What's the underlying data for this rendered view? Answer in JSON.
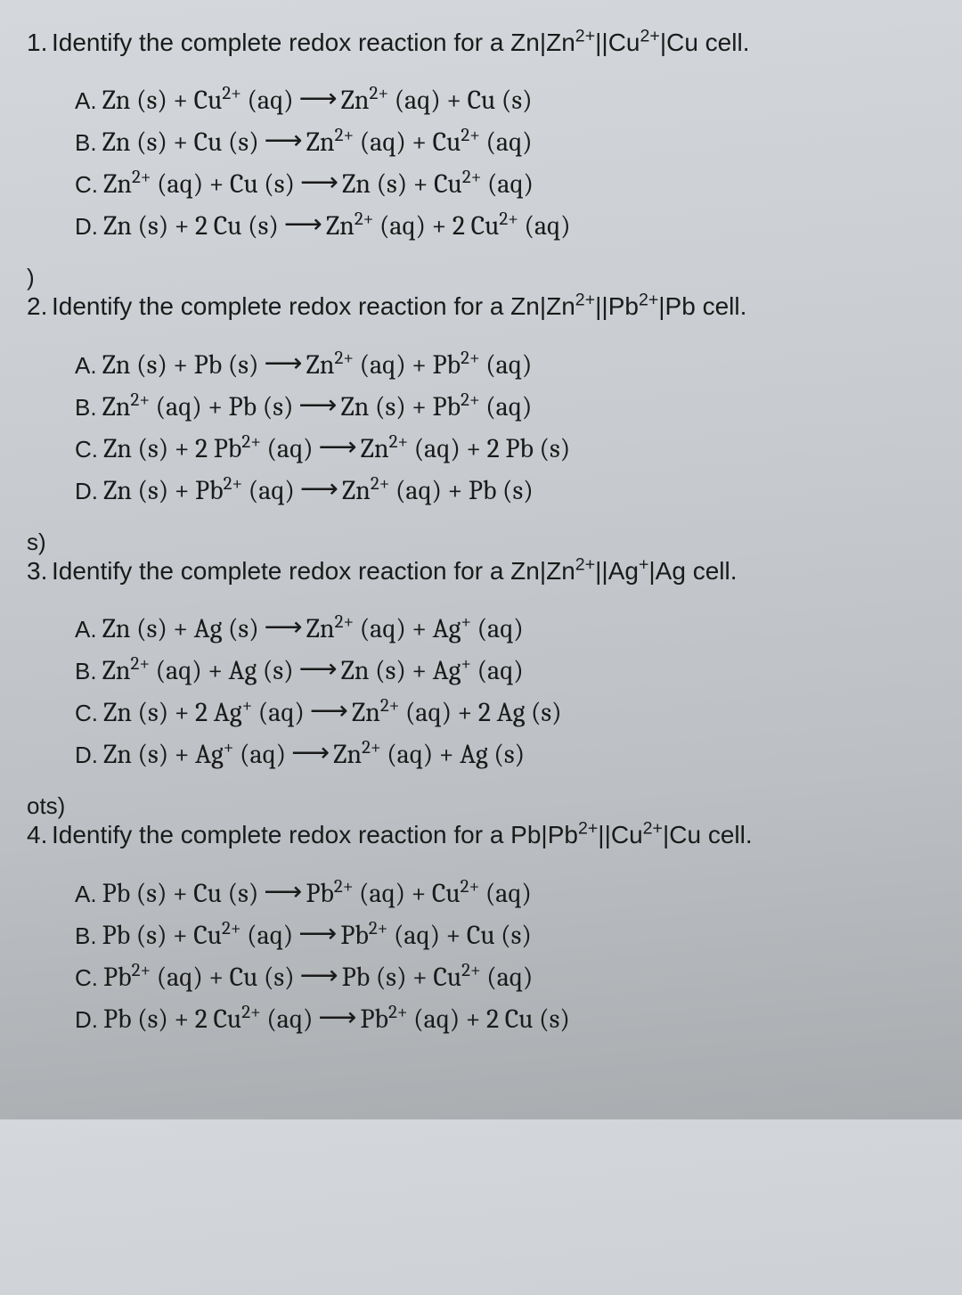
{
  "background_gradient": [
    "#d4d8dc",
    "#a8acaf"
  ],
  "text_color": "#1a1a1a",
  "stem_font_size": 28,
  "option_font_size": 30,
  "option_font_family": "Cambria / serif",
  "arrow_glyph": "⟶",
  "questions": [
    {
      "number": "1.",
      "stem_prefix": "Identify the complete redox reaction for a ",
      "cell_html": "Zn|Zn<sup>2+</sup>||Cu<sup>2+</sup>|Cu",
      "stem_suffix": " cell.",
      "margin_tag": "",
      "options": [
        {
          "label": "A.",
          "lhs": "Zn (s) + Cu<sup>2+</sup> (aq)",
          "rhs": "Zn<sup>2+</sup> (aq) + Cu (s)"
        },
        {
          "label": "B.",
          "lhs": "Zn (s) + Cu (s)",
          "rhs": "Zn<sup>2+</sup> (aq) + Cu<sup>2+</sup> (aq)"
        },
        {
          "label": "C.",
          "lhs": "Zn<sup>2+</sup> (aq) + Cu (s)",
          "rhs": "Zn (s) + Cu<sup>2+</sup> (aq)"
        },
        {
          "label": "D.",
          "lhs": "Zn (s) + 2 Cu (s)",
          "rhs": "Zn<sup>2+</sup> (aq) + 2 Cu<sup>2+</sup> (aq)"
        }
      ]
    },
    {
      "number": "2.",
      "stem_prefix": "Identify the complete redox reaction for a ",
      "cell_html": "Zn|Zn<sup>2+</sup>||Pb<sup>2+</sup>|Pb",
      "stem_suffix": " cell.",
      "margin_tag": ")",
      "options": [
        {
          "label": "A.",
          "lhs": "Zn (s) + Pb (s)",
          "rhs": "Zn<sup>2+</sup> (aq) + Pb<sup>2+</sup> (aq)"
        },
        {
          "label": "B.",
          "lhs": "Zn<sup>2+</sup> (aq) + Pb (s)",
          "rhs": "Zn (s) + Pb<sup>2+</sup> (aq)"
        },
        {
          "label": "C.",
          "lhs": "Zn (s) + 2 Pb<sup>2+</sup> (aq)",
          "rhs": "Zn<sup>2+</sup> (aq) + 2 Pb (s)"
        },
        {
          "label": "D.",
          "lhs": "Zn (s) + Pb<sup>2+</sup> (aq)",
          "rhs": "Zn<sup>2+</sup> (aq) + Pb (s)"
        }
      ]
    },
    {
      "number": "3.",
      "stem_prefix": "Identify the complete redox reaction for a ",
      "cell_html": "Zn|Zn<sup>2+</sup>||Ag<sup>+</sup>|Ag",
      "stem_suffix": " cell.",
      "margin_tag": "s)",
      "options": [
        {
          "label": "A.",
          "lhs": "Zn (s) + Ag (s)",
          "rhs": "Zn<sup>2+</sup> (aq) + Ag<sup>+</sup> (aq)"
        },
        {
          "label": "B.",
          "lhs": "Zn<sup>2+</sup> (aq) + Ag (s)",
          "rhs": "Zn (s) + Ag<sup>+</sup> (aq)"
        },
        {
          "label": "C.",
          "lhs": "Zn (s) + 2 Ag<sup>+</sup> (aq)",
          "rhs": "Zn<sup>2+</sup> (aq) + 2 Ag (s)"
        },
        {
          "label": "D.",
          "lhs": "Zn (s) + Ag<sup>+</sup> (aq)",
          "rhs": "Zn<sup>2+</sup> (aq) + Ag (s)"
        }
      ]
    },
    {
      "number": "4.",
      "stem_prefix": "Identify the complete redox reaction for a ",
      "cell_html": "Pb|Pb<sup>2+</sup>||Cu<sup>2+</sup>|Cu",
      "stem_suffix": " cell.",
      "margin_tag": "ots)",
      "options": [
        {
          "label": "A.",
          "lhs": "Pb (s) + Cu (s)",
          "rhs": "Pb<sup>2+</sup> (aq) + Cu<sup>2+</sup> (aq)"
        },
        {
          "label": "B.",
          "lhs": "Pb (s) + Cu<sup>2+</sup> (aq)",
          "rhs": "Pb<sup>2+</sup> (aq) + Cu (s)"
        },
        {
          "label": "C.",
          "lhs": "Pb<sup>2+</sup> (aq) + Cu (s)",
          "rhs": "Pb (s) + Cu<sup>2+</sup> (aq)"
        },
        {
          "label": "D.",
          "lhs": "Pb (s) + 2 Cu<sup>2+</sup> (aq)",
          "rhs": "Pb<sup>2+</sup> (aq) + 2 Cu (s)"
        }
      ]
    }
  ]
}
